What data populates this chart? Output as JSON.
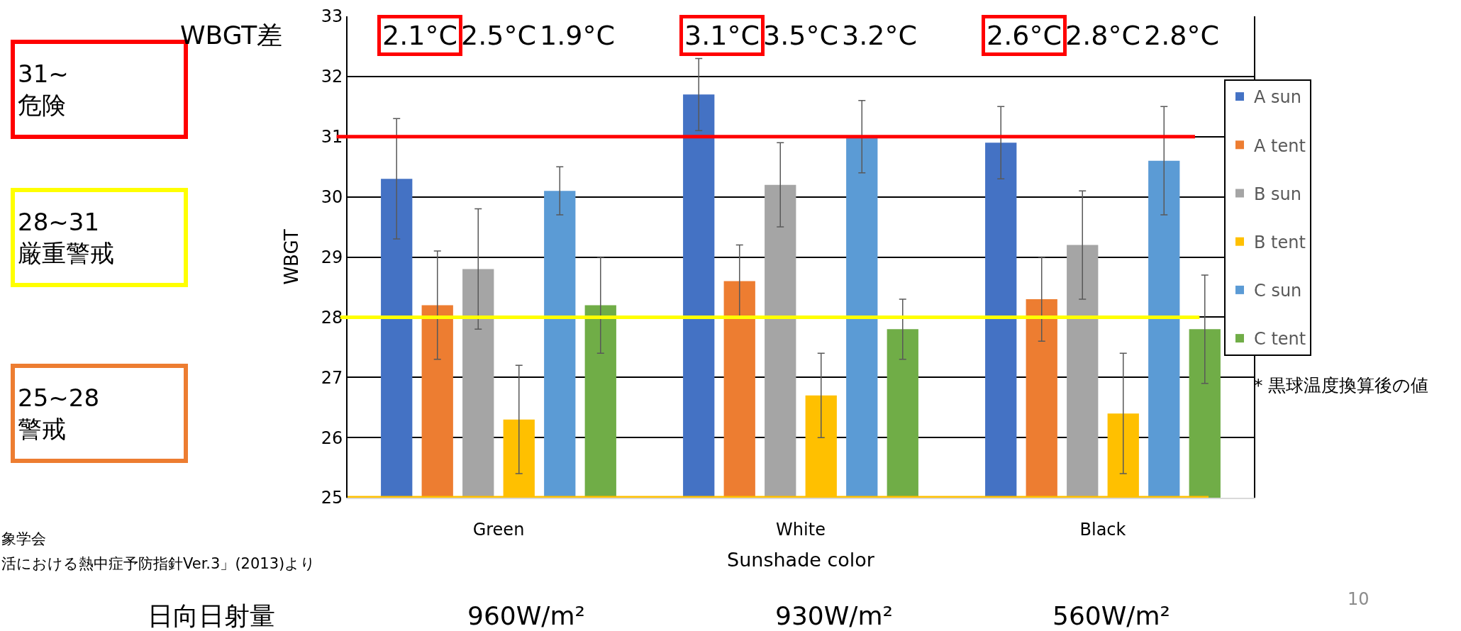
{
  "chart_data": {
    "type": "bar",
    "xlabel": "Sunshade color",
    "ylabel": "WBGT",
    "categories": [
      "Green",
      "White",
      "Black"
    ],
    "series": [
      {
        "name": "A sun",
        "color": "#4472c4",
        "values": [
          30.3,
          31.7,
          30.9
        ],
        "errors": [
          [
            29.3,
            31.3
          ],
          [
            31.1,
            32.3
          ],
          [
            30.3,
            31.5
          ]
        ]
      },
      {
        "name": "A tent",
        "color": "#ed7d31",
        "values": [
          28.2,
          28.6,
          28.3
        ],
        "errors": [
          [
            27.3,
            29.1
          ],
          [
            28.0,
            29.2
          ],
          [
            27.6,
            29.0
          ]
        ]
      },
      {
        "name": "B sun",
        "color": "#a5a5a5",
        "values": [
          28.8,
          30.2,
          29.2
        ],
        "errors": [
          [
            27.8,
            29.8
          ],
          [
            29.5,
            30.9
          ],
          [
            28.3,
            30.1
          ]
        ]
      },
      {
        "name": "B tent",
        "color": "#ffc000",
        "values": [
          26.3,
          26.7,
          26.4
        ],
        "errors": [
          [
            25.4,
            27.2
          ],
          [
            26.0,
            27.4
          ],
          [
            25.4,
            27.4
          ]
        ]
      },
      {
        "name": "C sun",
        "color": "#5b9bd5",
        "values": [
          30.1,
          31.0,
          30.6
        ],
        "errors": [
          [
            29.7,
            30.5
          ],
          [
            30.4,
            31.6
          ],
          [
            29.7,
            31.5
          ]
        ]
      },
      {
        "name": "C tent",
        "color": "#70ad47",
        "values": [
          28.2,
          27.8,
          27.8
        ],
        "errors": [
          [
            27.4,
            29.0
          ],
          [
            27.3,
            28.3
          ],
          [
            26.9,
            28.7
          ]
        ]
      }
    ],
    "ylim": [
      25,
      33
    ],
    "yticks": [
      25,
      26,
      27,
      28,
      29,
      30,
      31,
      32,
      33
    ],
    "grid": "y",
    "legend": "right",
    "ref_lines": [
      {
        "axis": "y",
        "value": 31,
        "color": "#ff0000"
      },
      {
        "axis": "y",
        "value": 28,
        "color": "#ffff00"
      },
      {
        "axis": "y",
        "value": 25,
        "color": "#ffc000"
      }
    ],
    "annotations": [
      "31~\n危険",
      "28~31\n厳重警戒",
      "25~28\n警戒",
      "WBGT差",
      "2.1°C",
      "2.5°C",
      "1.9°C",
      "3.1°C",
      "3.5°C",
      "3.2°C",
      "2.6°C",
      "2.8°C",
      "2.8°C",
      "象学会",
      "活における熱中症予防指針Ver.3」(2013)より",
      "日向日射量",
      "960W/m²",
      "930W/m²",
      "560W/m²",
      "* 黒球温度換算後の値",
      "10"
    ]
  }
}
